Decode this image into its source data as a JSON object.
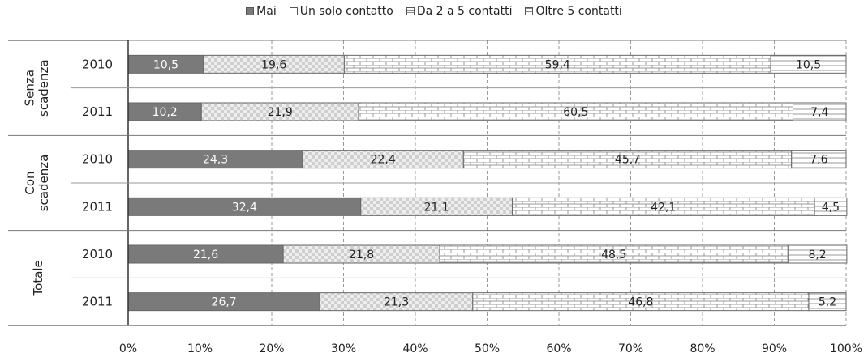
{
  "chart_data": {
    "type": "bar",
    "orientation": "horizontal",
    "stacked": true,
    "groups": [
      {
        "label": "Senza scadenza",
        "rows": [
          {
            "year": "2010",
            "values": [
              10.5,
              19.6,
              59.4,
              10.5
            ]
          },
          {
            "year": "2011",
            "values": [
              10.2,
              21.9,
              60.5,
              7.4
            ]
          }
        ]
      },
      {
        "label": "Con scadenza",
        "rows": [
          {
            "year": "2010",
            "values": [
              24.3,
              22.4,
              45.7,
              7.6
            ]
          },
          {
            "year": "2011",
            "values": [
              32.4,
              21.1,
              42.1,
              4.5
            ]
          }
        ]
      },
      {
        "label": "Totale",
        "rows": [
          {
            "year": "2010",
            "values": [
              21.6,
              21.8,
              48.5,
              8.2
            ]
          },
          {
            "year": "2011",
            "values": [
              26.7,
              21.3,
              46.8,
              5.2
            ]
          }
        ]
      }
    ],
    "series": [
      {
        "name": "Mai",
        "color": "#7a7a7a",
        "pattern": "solid"
      },
      {
        "name": "Un solo contatto",
        "color": "#d9d9d9",
        "pattern": "checker"
      },
      {
        "name": "Da 2 a 5 contatti",
        "color": "#cfcfcf",
        "pattern": "brick"
      },
      {
        "name": "Oltre 5 contatti",
        "color": "#cfcfcf",
        "pattern": "lines"
      }
    ],
    "xticks": [
      "0%",
      "10%",
      "20%",
      "30%",
      "40%",
      "50%",
      "60%",
      "70%",
      "80%",
      "90%",
      "100%"
    ],
    "xlim": [
      0,
      100
    ],
    "grid": true,
    "legend_position": "top"
  }
}
